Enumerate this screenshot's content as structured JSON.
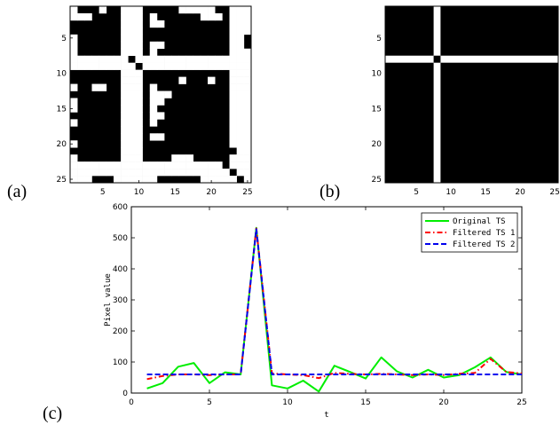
{
  "panels": {
    "a": {
      "label": "(a)",
      "xticks": [
        "5",
        "10",
        "15",
        "20",
        "25"
      ],
      "yticks": [
        "5",
        "10",
        "15",
        "20",
        "25"
      ]
    },
    "b": {
      "label": "(b)",
      "xticks": [
        "5",
        "10",
        "15",
        "20",
        "25"
      ],
      "yticks": [
        "5",
        "10",
        "15",
        "20",
        "25"
      ]
    },
    "c": {
      "label": "(c)"
    }
  },
  "matrix_a": [
    "1000100111000001111100111",
    "1110000111010000001110111",
    "0000000111011000000000111",
    "0000000111000000000000111",
    "1000000111000000000000110",
    "1000000111011000000000110",
    "1000000111010000000000111",
    "1111111101111111111111111",
    "1111111110111111111111111",
    "0000000111000000000000111",
    "0000000111000001000100111",
    "1001100111010000000000111",
    "0000000111011100000000111",
    "1000000111011000000000111",
    "1000000111010000000000111",
    "0000000111011000000000111",
    "1000000111010000000000111",
    "0000000111000000000000111",
    "0000000111011000000000111",
    "1000000111000000000000111",
    "0000000111000000000000011",
    "1000000111000011100000111",
    "1111111111111111111110111",
    "1111111111111111111111011",
    "1110001111110000001111101"
  ],
  "matrix_b_cross_index": 8,
  "chart_data": {
    "type": "line",
    "xlabel": "t",
    "ylabel": "Pixel value",
    "xlim": [
      0,
      25
    ],
    "ylim": [
      0,
      600
    ],
    "xticks": [
      0,
      5,
      10,
      15,
      20,
      25
    ],
    "yticks": [
      0,
      100,
      200,
      300,
      400,
      500,
      600
    ],
    "legend_position": "top-right",
    "x": [
      1,
      2,
      3,
      4,
      5,
      6,
      7,
      8,
      9,
      10,
      11,
      12,
      13,
      14,
      15,
      16,
      17,
      18,
      19,
      20,
      21,
      22,
      23,
      24,
      25
    ],
    "series": [
      {
        "name": "Original TS",
        "color": "#00ee00",
        "dash": "solid",
        "values": [
          15,
          32,
          85,
          97,
          32,
          67,
          60,
          532,
          25,
          15,
          40,
          5,
          88,
          68,
          47,
          115,
          70,
          50,
          75,
          50,
          58,
          83,
          115,
          68,
          60
        ]
      },
      {
        "name": "Filtered TS 1",
        "color": "#ff0000",
        "dash": "dashdot",
        "values": [
          45,
          55,
          60,
          60,
          58,
          60,
          60,
          530,
          63,
          60,
          58,
          48,
          65,
          62,
          60,
          62,
          60,
          58,
          60,
          58,
          62,
          65,
          110,
          68,
          63
        ]
      },
      {
        "name": "Filtered TS 2",
        "color": "#0000ee",
        "dash": "dashed",
        "values": [
          60,
          60,
          60,
          60,
          60,
          60,
          60,
          528,
          60,
          60,
          60,
          60,
          60,
          60,
          60,
          60,
          60,
          60,
          60,
          60,
          60,
          60,
          60,
          60,
          60
        ]
      }
    ]
  }
}
